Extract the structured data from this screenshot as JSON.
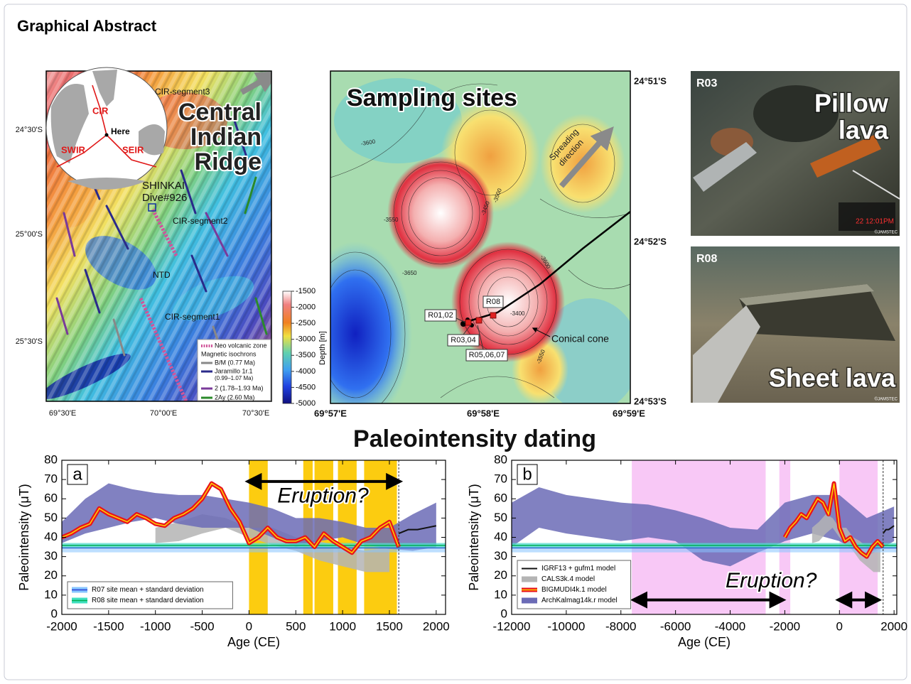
{
  "header": {
    "title": "Graphical Abstract"
  },
  "map": {
    "title_lines": [
      "Central",
      "Indian",
      "Ridge"
    ],
    "globe_labels": [
      "CIR",
      "Here",
      "SWIR",
      "SEIR"
    ],
    "labels": [
      "CIR-segment3",
      "SHINKAI",
      "Dive#926",
      "CIR-segment2",
      "NTD",
      "CIR-segment1"
    ],
    "legend": [
      "Neo volcanic zone",
      "Magnetic isochrons",
      "B/M (0.77 Ma)",
      "Jaramillo 1r.1",
      "(0.99–1.07 Ma)",
      "2 (1.78–1.93 Ma)",
      "2Ay (2.60 Ma)"
    ],
    "lat_labels": [
      "24°30'S",
      "25°00'S",
      "25°30'S"
    ],
    "lon_labels": [
      "69°30'E",
      "70°00'E",
      "70°30'E"
    ],
    "colorbar": {
      "label": "Depth [m]",
      "range": [
        -5000,
        -1500
      ],
      "ticks": [
        -1500,
        -2000,
        -2500,
        -3000,
        -3500,
        -4000,
        -4500,
        -5000
      ]
    }
  },
  "sampling": {
    "title": "Sampling sites",
    "direction_lines": [
      "Spreading",
      "direction"
    ],
    "sites": [
      "R01,02",
      "R08",
      "R03,04",
      "R05,06,07"
    ],
    "cone_label": "Conical cone",
    "contour_labels": [
      "-3600",
      "-3550",
      "-3650",
      "-3450",
      "-3500",
      "-3400",
      "-3550",
      "-3600"
    ],
    "lat_labels": [
      "24°51'S",
      "24°52'S",
      "24°53'S"
    ],
    "lon_labels": [
      "69°57'E",
      "69°58'E",
      "69°59'E"
    ]
  },
  "photos": [
    {
      "label": "R03",
      "caption_lines": [
        "Pillow",
        "lava"
      ],
      "timestamp": "22 12:01PM",
      "credit": "©JAMSTEC"
    },
    {
      "label": "R08",
      "caption_lines": [
        "Sheet lava"
      ],
      "credit": "©JAMSTEC"
    }
  ],
  "section_title": "Paleointensity dating",
  "chart_data": [
    {
      "type": "line",
      "panel_label": "a",
      "x_label": "Age (CE)",
      "y_label": "Paleointensity (μT)",
      "xlim": [
        -2000,
        2100
      ],
      "ylim": [
        0,
        80
      ],
      "xticks": [
        -2000,
        -1500,
        -1000,
        -500,
        0,
        500,
        1000,
        1500,
        2000
      ],
      "yticks": [
        0,
        10,
        20,
        30,
        40,
        50,
        60,
        70,
        80
      ],
      "highlights": {
        "color": "#fccc10",
        "ranges": [
          [
            0,
            200
          ],
          [
            580,
            680
          ],
          [
            700,
            900
          ],
          [
            950,
            1150
          ],
          [
            1230,
            1580
          ]
        ]
      },
      "vline": 1600,
      "arrows": [
        {
          "x": [
            0,
            1600
          ],
          "y": 69
        }
      ],
      "annotation": {
        "text": "Eruption?",
        "x": 790,
        "y": 61
      },
      "legend": "lower left",
      "series": [
        {
          "kind": "band",
          "color": "#6b6bb6",
          "x": [
            -2000,
            -1750,
            -1500,
            -1250,
            -1000,
            -750,
            -500,
            -250,
            0,
            250,
            500,
            750,
            1000,
            1250,
            1500,
            1750,
            2000
          ],
          "lower": [
            37,
            42,
            45,
            48,
            50,
            47,
            45,
            45,
            45,
            40,
            35,
            38,
            40,
            36,
            34,
            33,
            35
          ],
          "upper": [
            48,
            60,
            68,
            65,
            63,
            62,
            62,
            60,
            58,
            55,
            50,
            50,
            48,
            45,
            45,
            52,
            58
          ]
        },
        {
          "kind": "band",
          "color": "#b4b4b4",
          "x": [
            -1000,
            -750,
            -500,
            -250,
            0,
            250,
            500,
            750,
            1000,
            1250,
            1500
          ],
          "lower": [
            37,
            38,
            42,
            45,
            40,
            36,
            33,
            28,
            25,
            22,
            22
          ],
          "upper": [
            45,
            48,
            52,
            50,
            45,
            45,
            40,
            38,
            35,
            33,
            35
          ]
        },
        {
          "kind": "mean_sd",
          "name": "R07 site mean + standard deviation",
          "color": "#2a3bd0",
          "fill": "#86c5ff",
          "mean": 34.5,
          "sd": 2.3
        },
        {
          "kind": "mean_sd",
          "name": "R08 site mean + standard deviation",
          "color": "#00b050",
          "fill": "#40e0c0",
          "mean": 35.8,
          "sd": 1.3
        },
        {
          "kind": "line",
          "color": "#e8141b",
          "highlight": "#ffd400",
          "x": [
            -2000,
            -1900,
            -1800,
            -1700,
            -1600,
            -1500,
            -1400,
            -1300,
            -1200,
            -1100,
            -1000,
            -900,
            -800,
            -700,
            -600,
            -500,
            -400,
            -300,
            -200,
            -100,
            0,
            100,
            200,
            300,
            400,
            500,
            600,
            700,
            800,
            900,
            1000,
            1100,
            1200,
            1300,
            1400,
            1500,
            1600
          ],
          "values": [
            40,
            42,
            45,
            47,
            55,
            52,
            50,
            48,
            52,
            50,
            47,
            46,
            50,
            52,
            55,
            60,
            68,
            65,
            55,
            48,
            37,
            40,
            45,
            40,
            38,
            38,
            40,
            35,
            42,
            38,
            35,
            32,
            38,
            40,
            45,
            48,
            35
          ]
        },
        {
          "kind": "line",
          "color": "#111111",
          "x": [
            1600,
            1700,
            1800,
            1900,
            2000
          ],
          "values": [
            42,
            44,
            44,
            45,
            46
          ]
        }
      ]
    },
    {
      "type": "line",
      "panel_label": "b",
      "x_label": "Age (CE)",
      "y_label": "Paleointensity (μT)",
      "xlim": [
        -12000,
        2100
      ],
      "ylim": [
        0,
        80
      ],
      "xticks": [
        -12000,
        -10000,
        -8000,
        -6000,
        -4000,
        -2000,
        0,
        2000
      ],
      "yticks": [
        0,
        10,
        20,
        30,
        40,
        50,
        60,
        70,
        80
      ],
      "highlights": {
        "color": "#f8c8f6",
        "ranges": [
          [
            -7600,
            -2700
          ],
          [
            -2200,
            -1800
          ],
          [
            0,
            1400
          ]
        ]
      },
      "vline": 1600,
      "arrows": [
        {
          "x": [
            -7500,
            -2100
          ],
          "y": 7.5
        },
        {
          "x": [
            0,
            1400
          ],
          "y": 7.5
        }
      ],
      "annotation": {
        "text": "Eruption?",
        "x": -2500,
        "y": 17
      },
      "legend": "lower left",
      "series": [
        {
          "kind": "line",
          "name": "IGRF13 + gufm1 model",
          "color": "#111111",
          "x": [
            1600,
            1700,
            1800,
            1900,
            2000
          ],
          "values": [
            42,
            44,
            44,
            45,
            46
          ]
        },
        {
          "kind": "band",
          "name": "CALS3k.4 model",
          "color": "#b4b4b4",
          "x": [
            -1000,
            -750,
            -500,
            -250,
            0,
            250,
            500,
            750,
            1000,
            1250,
            1500
          ],
          "lower": [
            37,
            38,
            42,
            45,
            40,
            36,
            33,
            28,
            25,
            22,
            22
          ],
          "upper": [
            45,
            48,
            52,
            50,
            45,
            45,
            40,
            38,
            35,
            33,
            35
          ]
        },
        {
          "kind": "line",
          "name": "BIGMUDI4k.1 model",
          "color": "#e8141b",
          "highlight": "#ffd400",
          "x": [
            -2000,
            -1800,
            -1600,
            -1400,
            -1200,
            -1000,
            -800,
            -600,
            -400,
            -200,
            0,
            200,
            400,
            600,
            800,
            1000,
            1200,
            1400,
            1600
          ],
          "values": [
            40,
            45,
            48,
            52,
            50,
            55,
            60,
            58,
            52,
            68,
            45,
            38,
            40,
            35,
            32,
            30,
            35,
            38,
            35
          ]
        },
        {
          "kind": "band",
          "name": "ArchKalmag14k.r model",
          "color": "#6b6bb6",
          "x": [
            -12000,
            -11000,
            -10000,
            -9000,
            -8000,
            -7000,
            -6000,
            -5000,
            -4000,
            -3000,
            -2000,
            -1000,
            0,
            1000,
            2000
          ],
          "lower": [
            35,
            45,
            42,
            40,
            38,
            40,
            38,
            28,
            25,
            32,
            38,
            42,
            38,
            30,
            38
          ],
          "upper": [
            58,
            66,
            62,
            60,
            58,
            57,
            54,
            50,
            45,
            44,
            58,
            62,
            62,
            50,
            56
          ]
        },
        {
          "kind": "mean_sd",
          "color": "#2a3bd0",
          "fill": "#86c5ff",
          "mean": 34.5,
          "sd": 2.3
        },
        {
          "kind": "mean_sd",
          "color": "#00b050",
          "fill": "#40e0c0",
          "mean": 35.8,
          "sd": 1.3
        }
      ]
    }
  ]
}
